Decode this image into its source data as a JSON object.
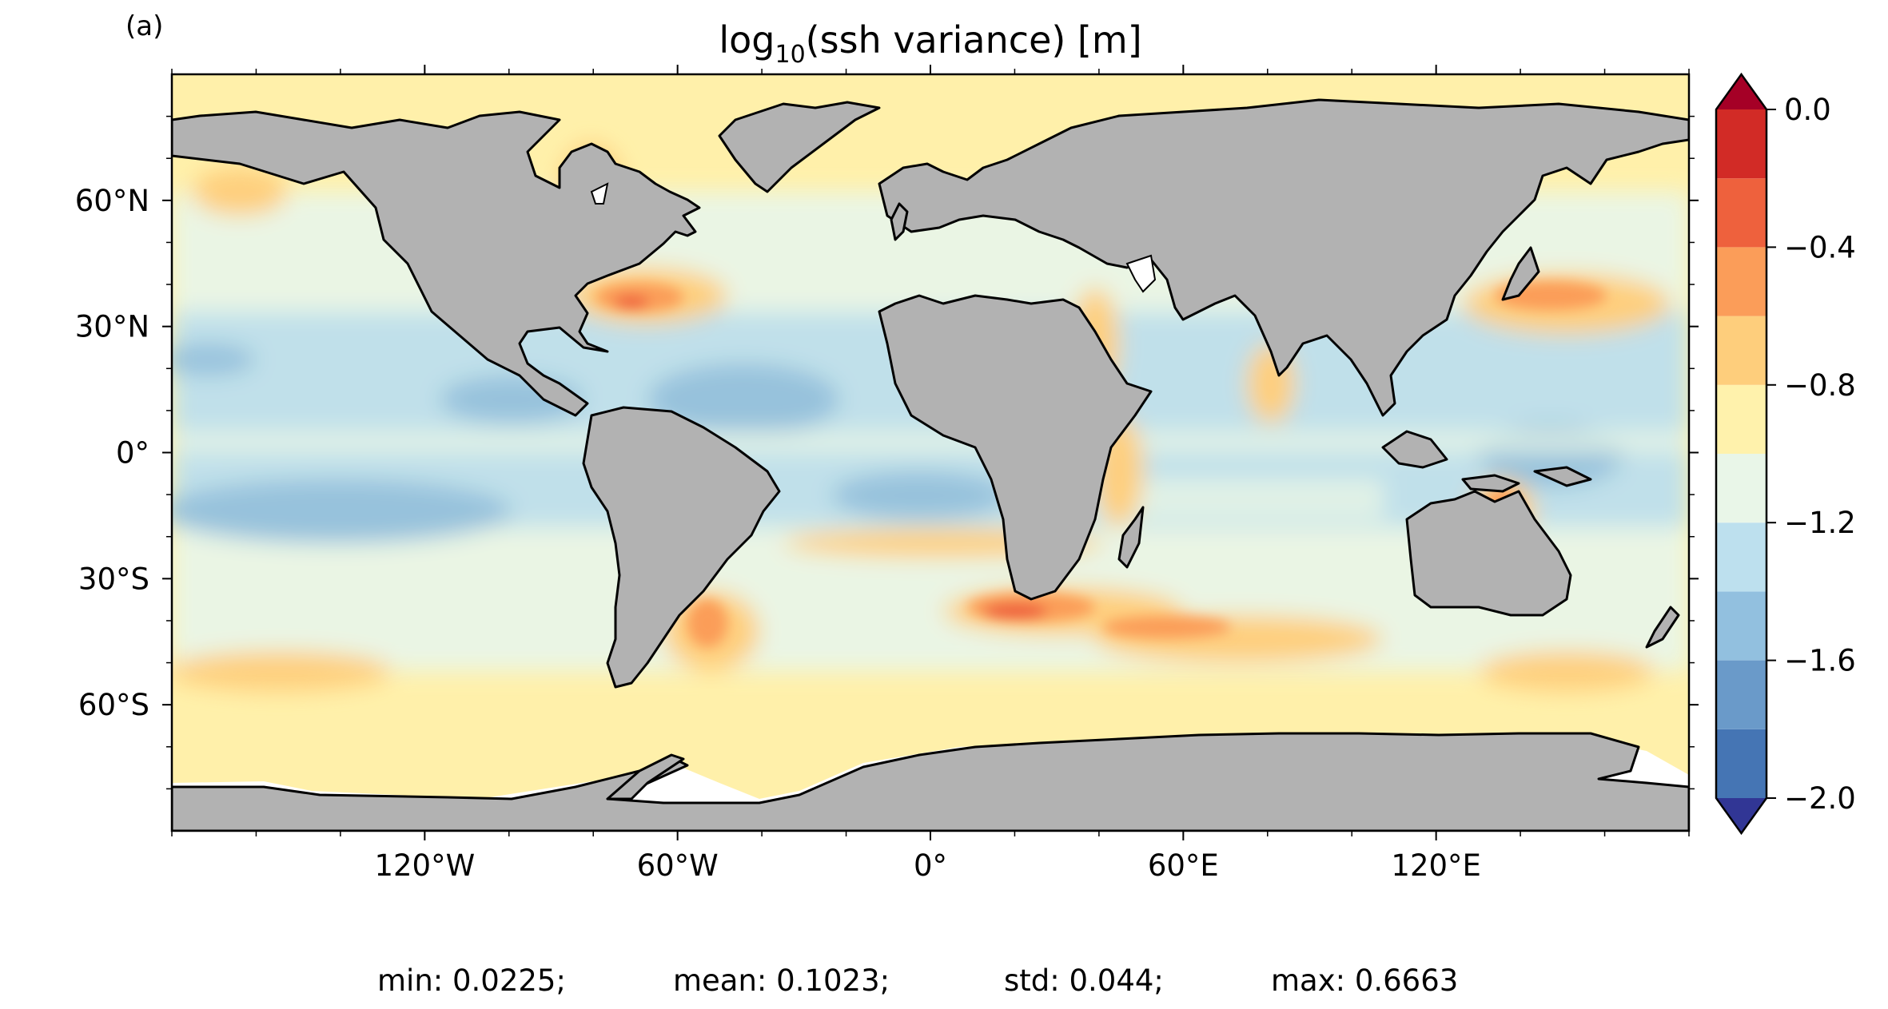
{
  "panel_label": "(a)",
  "title": {
    "prefix": "log",
    "subscript": "10",
    "suffix": "(ssh variance) [m]"
  },
  "map": {
    "ocean_base_color": "#fff0aa",
    "land_color": "#b2b2b2",
    "sea_ice_color": "#ffffff",
    "coastline_color": "#000000",
    "lon_ticks": [
      "120°W",
      "60°W",
      "0°",
      "60°E",
      "120°E"
    ],
    "lat_ticks": [
      "60°N",
      "30°N",
      "0°",
      "30°S",
      "60°S"
    ]
  },
  "colorbar": {
    "levels": [
      -2.0,
      -1.8,
      -1.6,
      -1.4,
      -1.2,
      -1.0,
      -0.8,
      -0.6,
      -0.4,
      -0.2,
      0.0
    ],
    "colors": [
      "#4575b4",
      "#6a9ac9",
      "#92c0df",
      "#bde0ee",
      "#e9f6e8",
      "#fff2ac",
      "#fece7c",
      "#fb9d59",
      "#ee613d",
      "#d22b26"
    ],
    "under_color": "#313695",
    "over_color": "#a50026",
    "tick_labels": [
      "0.0",
      "−0.4",
      "−0.8",
      "−1.2",
      "−1.6",
      "−2.0"
    ]
  },
  "stats": {
    "min": "min: 0.0225;",
    "mean": "mean: 0.1023;",
    "std": "std: 0.044;",
    "max": "max: 0.6663"
  }
}
